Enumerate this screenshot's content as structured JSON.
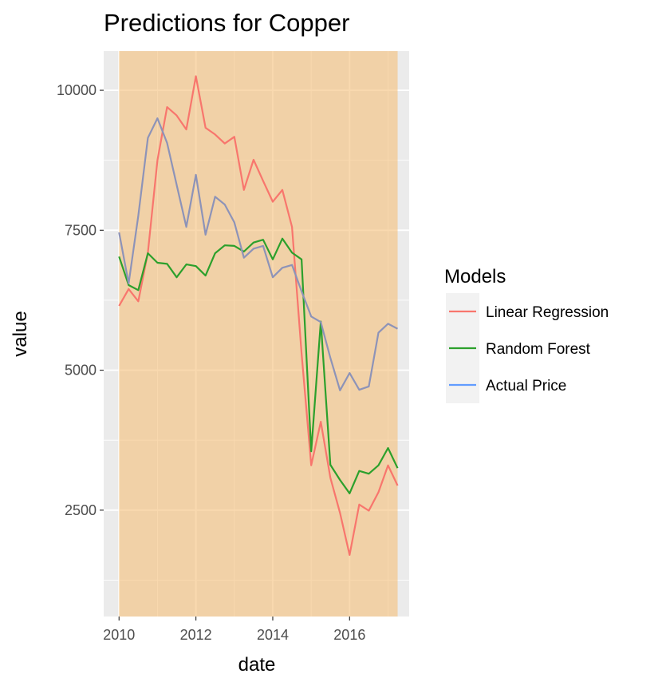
{
  "chart_data": {
    "type": "line",
    "title": "Predictions for Copper",
    "xlabel": "date",
    "ylabel": "value",
    "xlim": [
      2009.6,
      2017.55
    ],
    "ylim": [
      600,
      10700
    ],
    "x_ticks": [
      2010,
      2012,
      2014,
      2016
    ],
    "x_tick_labels": [
      "2010",
      "2012",
      "2014",
      "2016"
    ],
    "y_ticks": [
      2500,
      5000,
      7500,
      10000
    ],
    "y_tick_labels": [
      "2500",
      "5000",
      "7500",
      "10000"
    ],
    "highlight_range": [
      2010.0,
      2017.25
    ],
    "legend": {
      "title": "Models",
      "position": "right"
    },
    "x": [
      2010.0,
      2010.25,
      2010.5,
      2010.75,
      2011.0,
      2011.25,
      2011.5,
      2011.75,
      2012.0,
      2012.25,
      2012.5,
      2012.75,
      2013.0,
      2013.25,
      2013.5,
      2013.75,
      2014.0,
      2014.25,
      2014.5,
      2014.75,
      2015.0,
      2015.25,
      2015.5,
      2015.75,
      2016.0,
      2016.25,
      2016.5,
      2016.75,
      2017.0,
      2017.25
    ],
    "series": [
      {
        "name": "Linear Regression",
        "color": "#F8766D",
        "values": [
          6150,
          6450,
          6230,
          7100,
          8750,
          9700,
          9550,
          9300,
          10250,
          9330,
          9210,
          9050,
          9170,
          8220,
          8760,
          8380,
          8010,
          8220,
          7560,
          5300,
          3300,
          4080,
          3080,
          2450,
          1700,
          2600,
          2490,
          2820,
          3300,
          2940
        ]
      },
      {
        "name": "Random Forest",
        "color": "#2CA02C",
        "values": [
          7030,
          6520,
          6430,
          7090,
          6920,
          6900,
          6660,
          6890,
          6860,
          6690,
          7090,
          7230,
          7220,
          7120,
          7280,
          7330,
          6980,
          7350,
          7100,
          6980,
          3550,
          5870,
          3310,
          3040,
          2800,
          3200,
          3150,
          3300,
          3610,
          3250
        ]
      },
      {
        "name": "Actual Price",
        "color": "#8D93B8",
        "legend_color": "#619CFF",
        "values": [
          7460,
          6550,
          7760,
          9150,
          9500,
          9060,
          8310,
          7560,
          8490,
          7420,
          8100,
          7960,
          7640,
          7010,
          7170,
          7220,
          6660,
          6830,
          6880,
          6410,
          5960,
          5860,
          5220,
          4640,
          4950,
          4650,
          4710,
          5670,
          5830,
          5740
        ]
      }
    ]
  }
}
